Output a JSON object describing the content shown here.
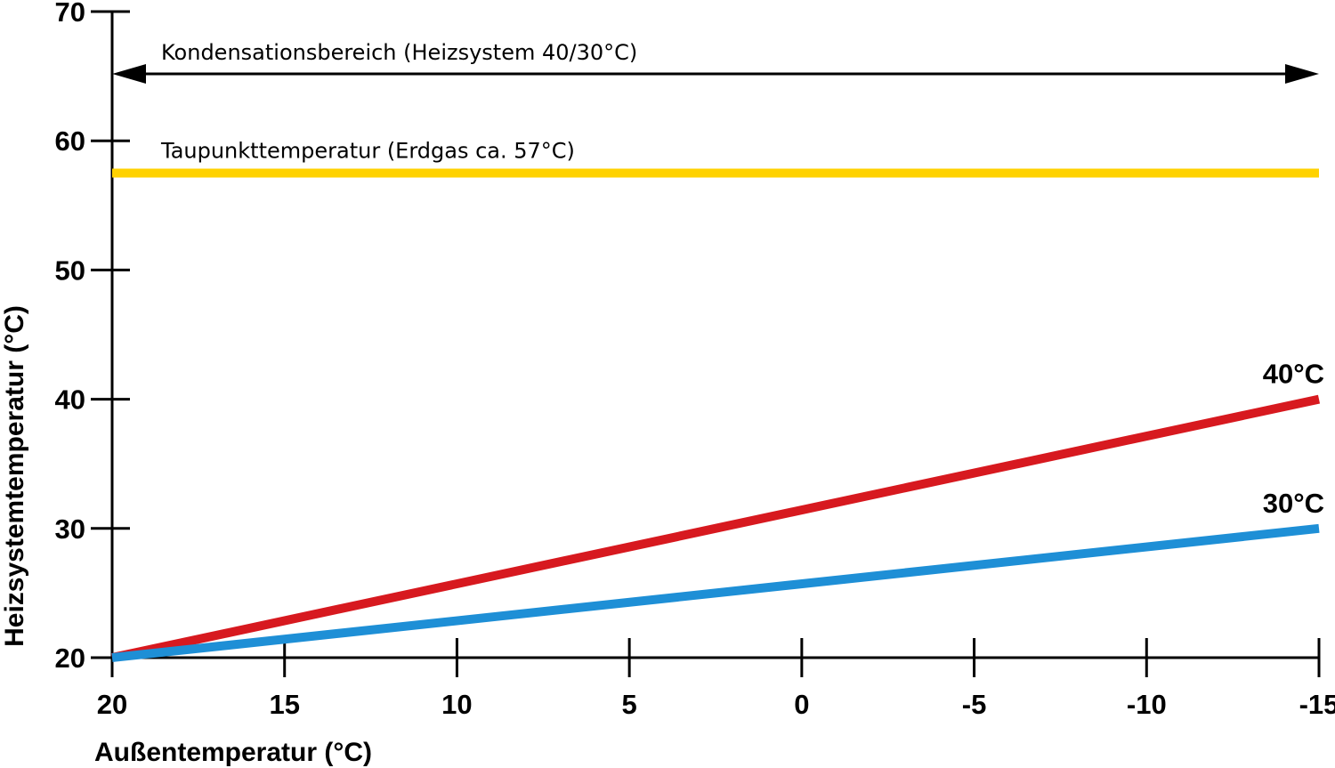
{
  "chart_data": {
    "type": "line",
    "xlabel": "Außentemperatur (°C)",
    "ylabel": "Heizsystemtemperatur (°C)",
    "xlim": [
      20,
      -15
    ],
    "ylim": [
      20,
      70
    ],
    "x_ticks": [
      20,
      15,
      10,
      5,
      0,
      -5,
      -10,
      -15
    ],
    "y_ticks": [
      20,
      30,
      40,
      50,
      60,
      70
    ],
    "x_tick_labels": [
      "20",
      "15",
      "10",
      "5",
      "0",
      "-5",
      "-10",
      "-15"
    ],
    "y_tick_labels": [
      "20",
      "30",
      "40",
      "50",
      "60",
      "70"
    ],
    "series": [
      {
        "name": "40°C",
        "color": "#d7191f",
        "x": [
          20,
          -15
        ],
        "y": [
          20,
          40
        ]
      },
      {
        "name": "30°C",
        "color": "#1e8fd6",
        "x": [
          20,
          -15
        ],
        "y": [
          20,
          30
        ]
      }
    ],
    "reference_lines": [
      {
        "label": "Taupunkttemperatur (Erdgas ca. 57°C)",
        "color": "#ffd200",
        "y": 57.5
      }
    ],
    "ranges": [
      {
        "label": "Kondensationsbereich (Heizsystem 40/30°C)",
        "x": [
          20,
          -15
        ]
      }
    ],
    "grid": false
  }
}
